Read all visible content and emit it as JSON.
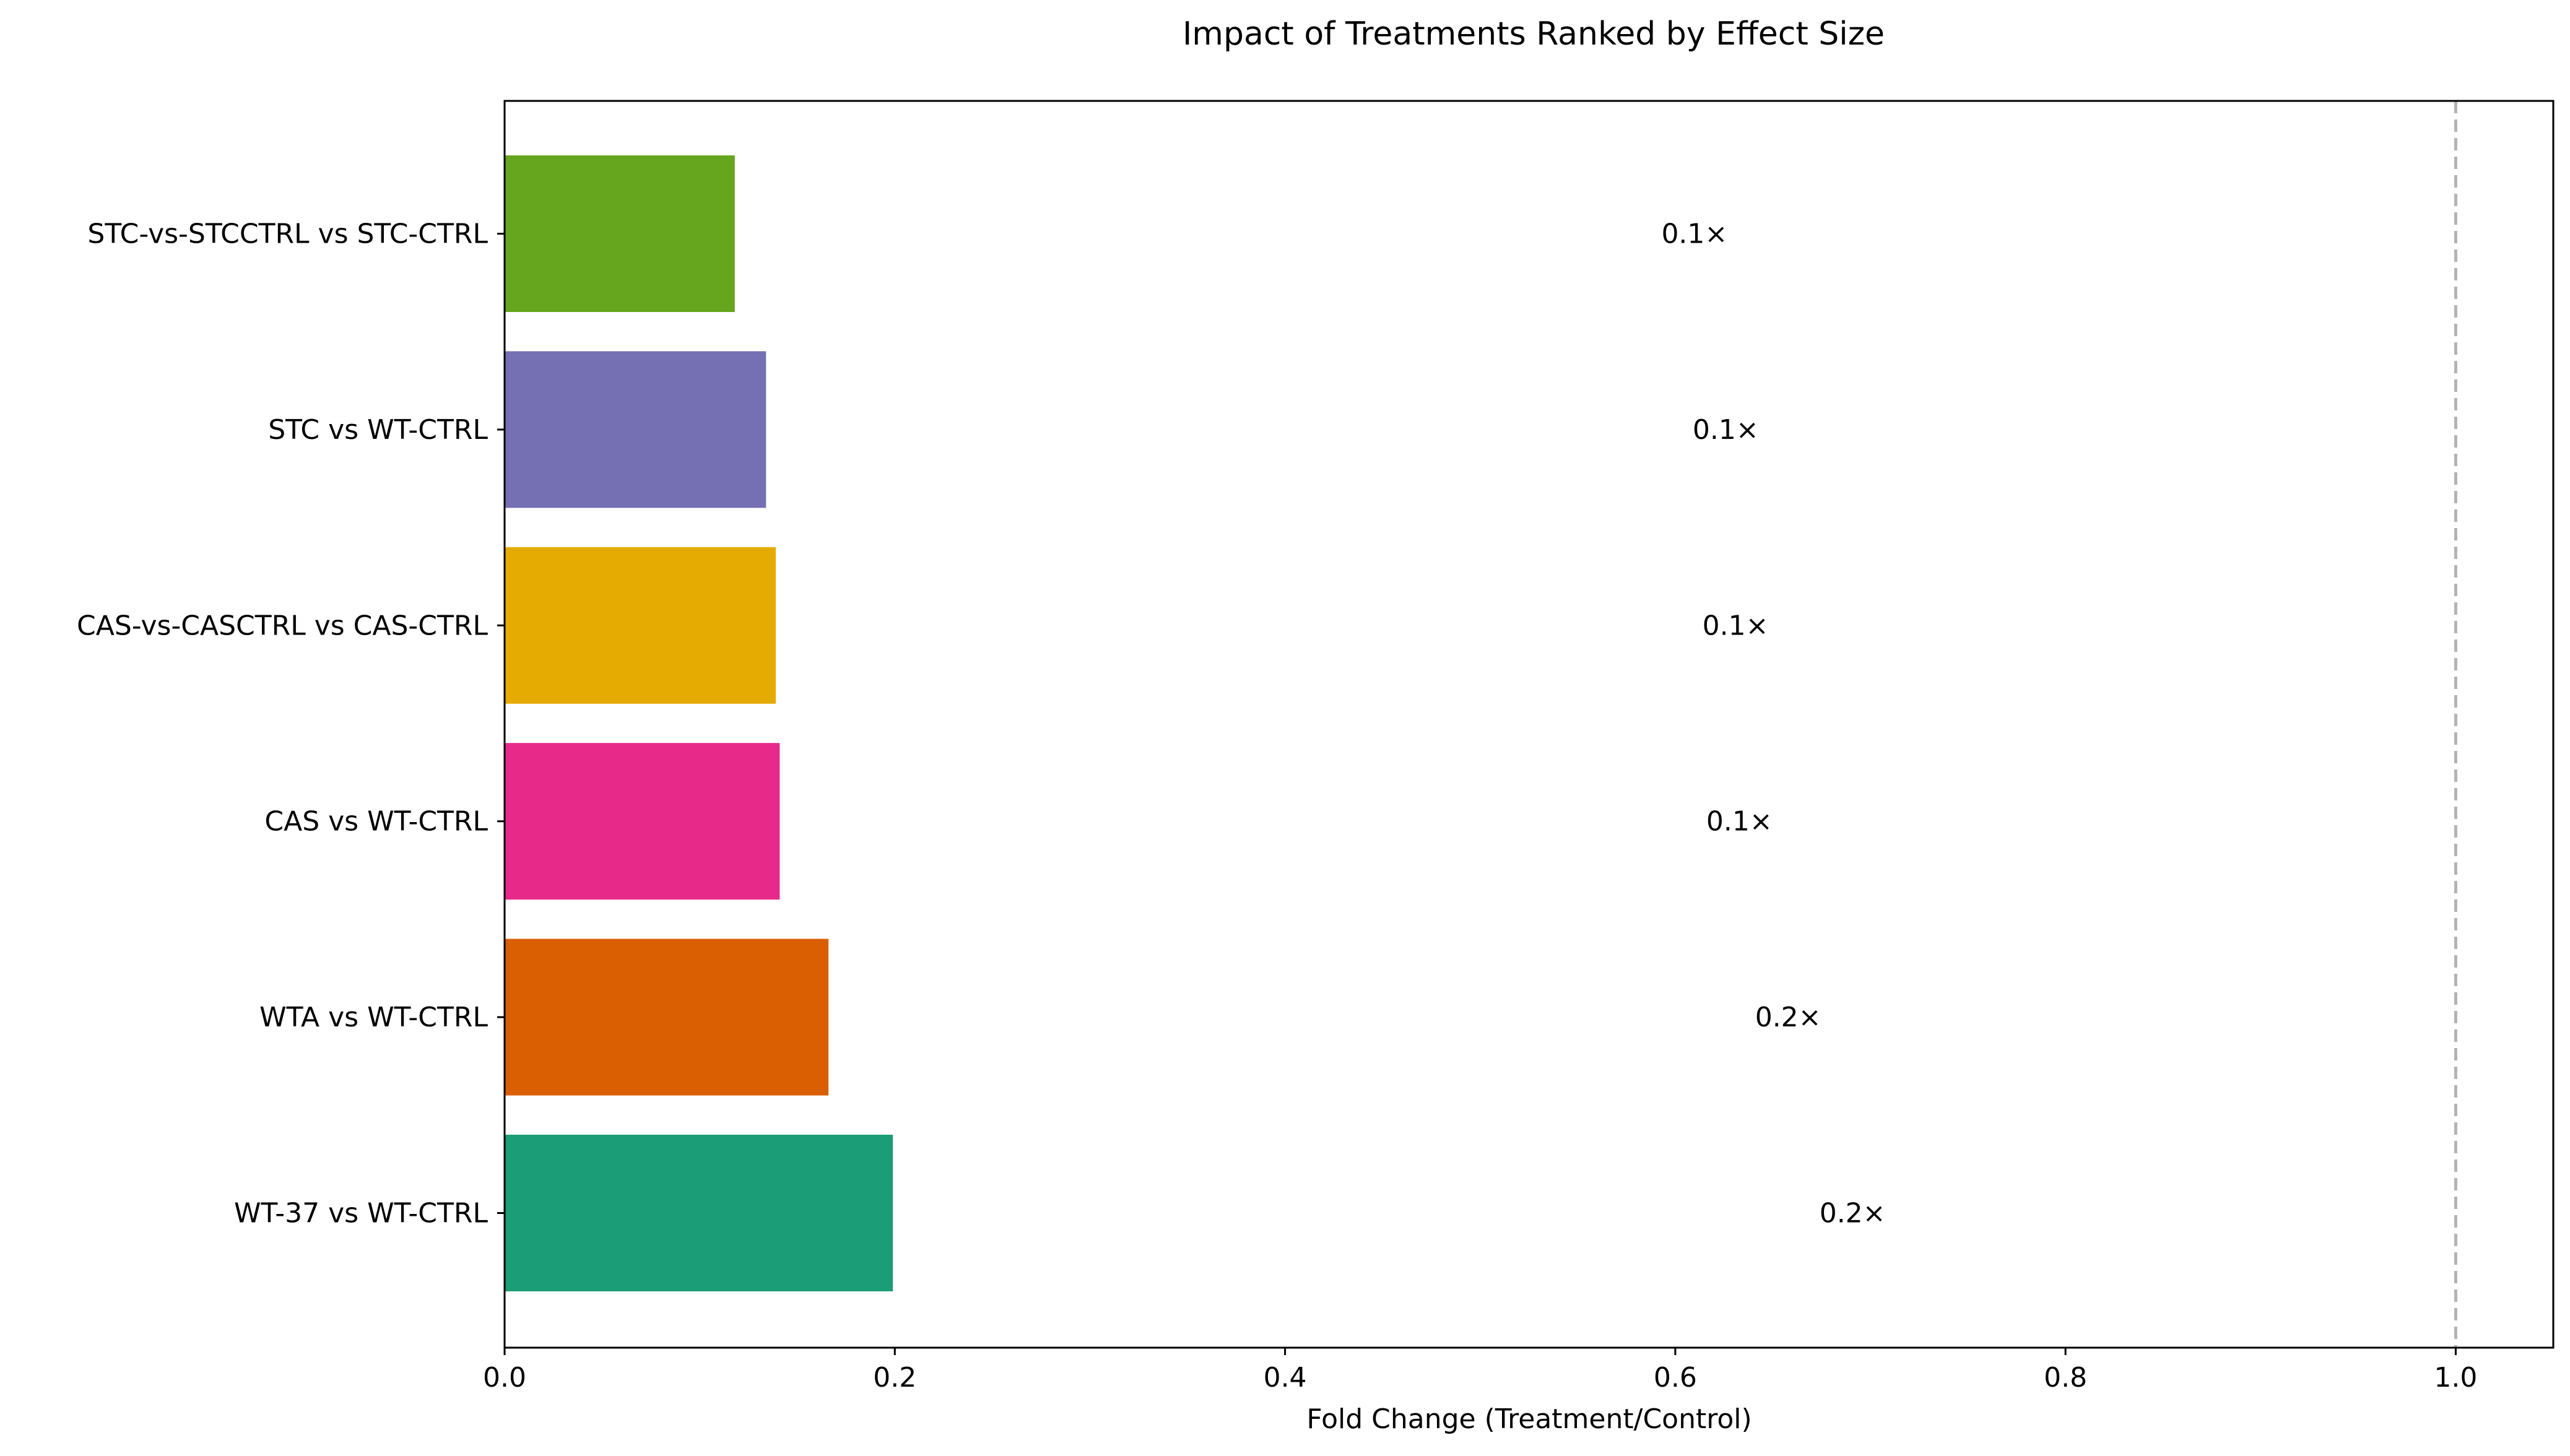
{
  "chart_data": {
    "type": "bar",
    "orientation": "horizontal",
    "title": "Impact of Treatments Ranked by Effect Size",
    "xlabel": "Fold Change (Treatment/Control)",
    "ylabel": "",
    "xlim": [
      0.0,
      1.05
    ],
    "xticks": [
      "0.0",
      "0.2",
      "0.4",
      "0.6",
      "0.8",
      "1.0"
    ],
    "grid": false,
    "reference_line": {
      "x": 1.0,
      "style": "dashed",
      "color": "#b3b3b3"
    },
    "bars": [
      {
        "category": "STC-vs-STCCTRL vs STC-CTRL",
        "value": 0.118,
        "label": "0.1×",
        "color": "#66a61e"
      },
      {
        "category": "STC vs WT-CTRL",
        "value": 0.134,
        "label": "0.1×",
        "color": "#7570b3"
      },
      {
        "category": "CAS-vs-CASCTRL vs CAS-CTRL",
        "value": 0.139,
        "label": "0.1×",
        "color": "#e6ab02"
      },
      {
        "category": "CAS vs WT-CTRL",
        "value": 0.141,
        "label": "0.1×",
        "color": "#e7298a"
      },
      {
        "category": "WTA vs WT-CTRL",
        "value": 0.166,
        "label": "0.2×",
        "color": "#d95f02"
      },
      {
        "category": "WT-37 vs WT-CTRL",
        "value": 0.199,
        "label": "0.2×",
        "color": "#1b9e77"
      }
    ]
  }
}
